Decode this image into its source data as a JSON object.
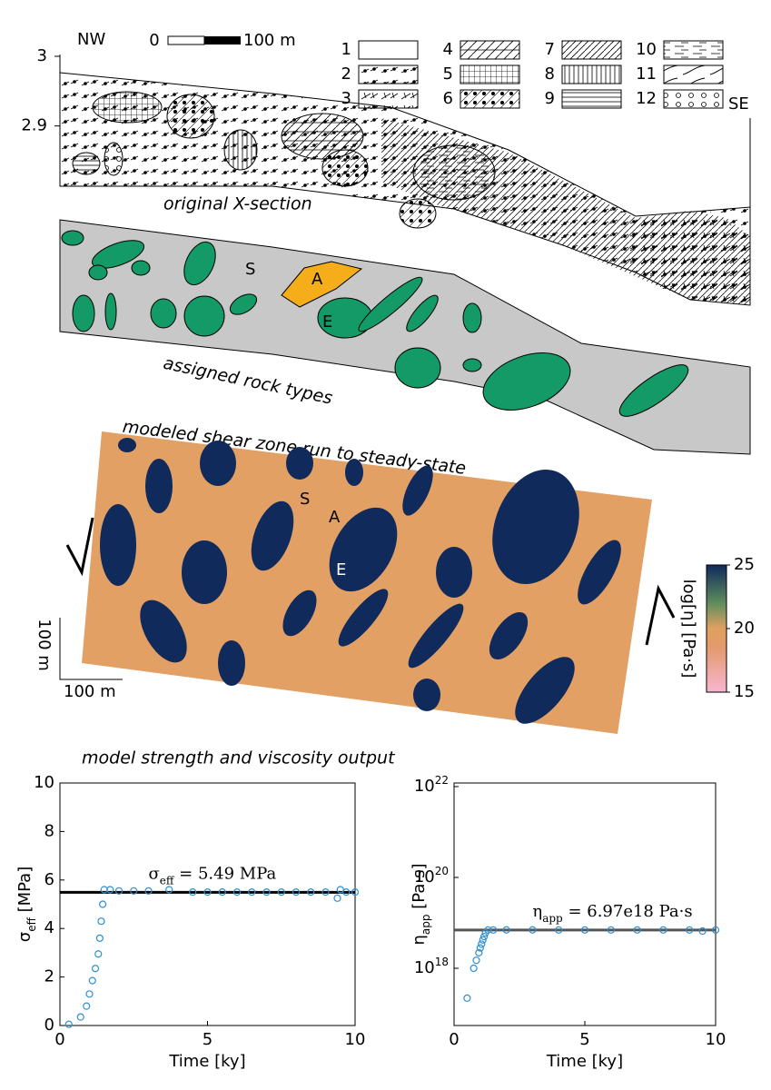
{
  "section": {
    "nw": "NW",
    "se": "SE",
    "ylim": [
      2.82,
      3.0
    ],
    "yticks": [
      3,
      2.9
    ],
    "scale_start": "0",
    "scale_end": "100 m",
    "legend": [
      "1",
      "2",
      "3",
      "4",
      "5",
      "6",
      "7",
      "8",
      "9",
      "10",
      "11",
      "12"
    ],
    "original_label": "original X-section",
    "assigned_label": "assigned rock types",
    "rock_labels": [
      "S",
      "A",
      "E"
    ]
  },
  "model": {
    "title": "modeled shear zone run to steady-state",
    "rock_labels": [
      "S",
      "A",
      "E"
    ],
    "scale_vertical": "100 m",
    "scale_horizontal": "100 m",
    "colorbar": {
      "label": "log[η] [Pa·s]",
      "lim": [
        15,
        25
      ],
      "ticks": [
        25,
        20,
        15
      ]
    }
  },
  "charts_heading": "model strength and viscosity output",
  "chart_data": [
    {
      "type": "scatter",
      "x": [
        0.3,
        0.7,
        0.9,
        1.0,
        1.1,
        1.2,
        1.3,
        1.35,
        1.4,
        1.45,
        1.5,
        1.7,
        2.0,
        2.5,
        3.0,
        3.7,
        4.5,
        5.0,
        5.5,
        6.0,
        6.5,
        7.0,
        7.5,
        8.0,
        8.5,
        9.0,
        9.4,
        9.5,
        9.7,
        10.0
      ],
      "values": [
        0.05,
        0.35,
        0.8,
        1.3,
        1.85,
        2.35,
        2.95,
        3.6,
        4.3,
        5.0,
        5.6,
        5.6,
        5.55,
        5.55,
        5.55,
        5.6,
        5.5,
        5.5,
        5.5,
        5.5,
        5.5,
        5.5,
        5.5,
        5.5,
        5.5,
        5.5,
        5.25,
        5.6,
        5.5,
        5.5
      ],
      "color": "#2e8fd0",
      "xlim": [
        0,
        10
      ],
      "xticks": [
        0,
        5,
        10
      ],
      "ylim": [
        0,
        10
      ],
      "yticks": [
        0,
        2,
        4,
        6,
        8,
        10
      ],
      "log_y": false,
      "x_label": "Time [ky]",
      "y_label": {
        "symbol": "σ",
        "subscript": "eff",
        "unit": " [MPa]"
      },
      "mean_line": 5.49,
      "mean_color": "#000000",
      "annotation": {
        "symbol": "σ",
        "subscript": "eff",
        "text": " = 5.49 MPa"
      }
    },
    {
      "type": "scatter",
      "x": [
        0.5,
        0.75,
        0.85,
        0.95,
        1.0,
        1.05,
        1.1,
        1.15,
        1.2,
        1.3,
        1.5,
        2.0,
        3.0,
        4.0,
        5.0,
        6.0,
        7.0,
        8.0,
        9.0,
        9.5,
        10.0
      ],
      "values": [
        2.2e+17,
        1e+18,
        1.5e+18,
        2.2e+18,
        2.8e+18,
        3.4e+18,
        4.2e+18,
        5e+18,
        6e+18,
        6.97e+18,
        6.97e+18,
        7e+18,
        7e+18,
        6.97e+18,
        6.97e+18,
        6.97e+18,
        6.97e+18,
        6.97e+18,
        6.97e+18,
        6.6e+18,
        6.97e+18
      ],
      "color": "#2e8fd0",
      "xlim": [
        0,
        10
      ],
      "xticks": [
        0,
        5,
        10
      ],
      "ylim": [
        5.5e+16,
        1.2e+22
      ],
      "log_y": true,
      "yticks": [
        {
          "value": 1e+18,
          "label": "10",
          "exponent": "18"
        },
        {
          "value": 1e+20,
          "label": "10",
          "exponent": "20"
        },
        {
          "value": 1e+22,
          "label": "10",
          "exponent": "22"
        }
      ],
      "x_label": "Time [ky]",
      "y_label": {
        "symbol": "η",
        "subscript": "app",
        "unit": " [Pa·s]"
      },
      "mean_line": 6.97e+18,
      "mean_color": "#555555",
      "annotation": {
        "symbol": "η",
        "subscript": "app",
        "text": " = 6.97e18 Pa·s"
      }
    }
  ]
}
